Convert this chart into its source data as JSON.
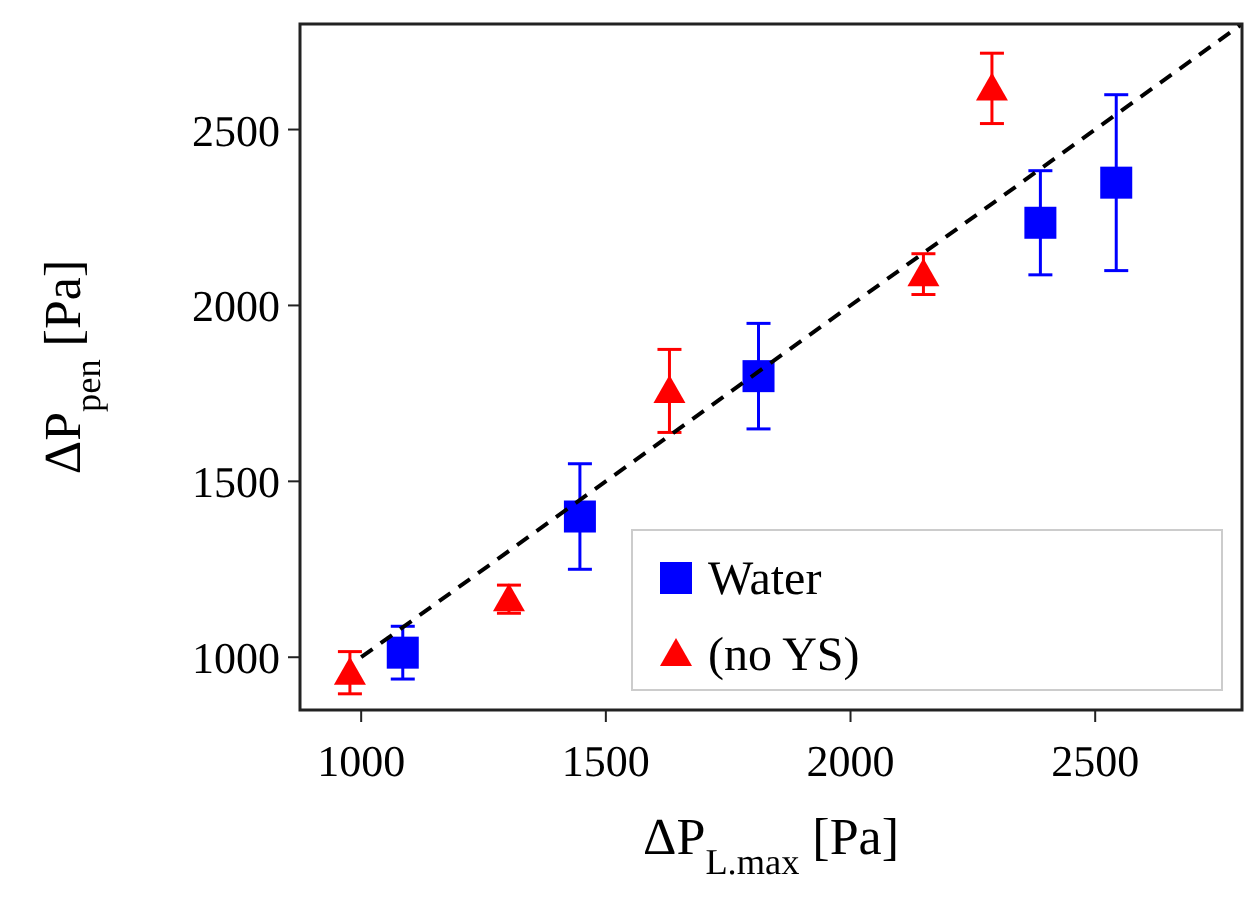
{
  "chart_data": {
    "type": "scatter",
    "xlabel": "ΔP$_{L.max}$ [Pa]",
    "ylabel": "ΔP$_{pen}$ [Pa]",
    "xlim": [
      875,
      2800
    ],
    "ylim": [
      850,
      2800
    ],
    "xticks": [
      1000,
      1500,
      2000,
      2500
    ],
    "yticks": [
      1000,
      1500,
      2000,
      2500
    ],
    "grid": false,
    "legend": "bottom right",
    "series": [
      {
        "name": "Water",
        "color": "#0000ff",
        "marker": "square",
        "x": [
          1085,
          1447,
          1812,
          2388,
          2543
        ],
        "values": [
          1013,
          1400,
          1799,
          2235,
          2349
        ],
        "errors": [
          75,
          150,
          150,
          148,
          250
        ]
      },
      {
        "name": "(no YS)",
        "color": "#ff0000",
        "marker": "triangle",
        "x": [
          977,
          1302,
          1630,
          2149,
          2289
        ],
        "values": [
          956,
          1165,
          1757,
          2089,
          2617
        ],
        "errors": [
          60,
          40,
          118,
          58,
          100
        ]
      },
      {
        "type": "line",
        "color": "#000000",
        "line_style": "dashed",
        "marker": "none",
        "x": [
          1000,
          2800
        ],
        "values": [
          1000,
          2800
        ]
      }
    ]
  }
}
